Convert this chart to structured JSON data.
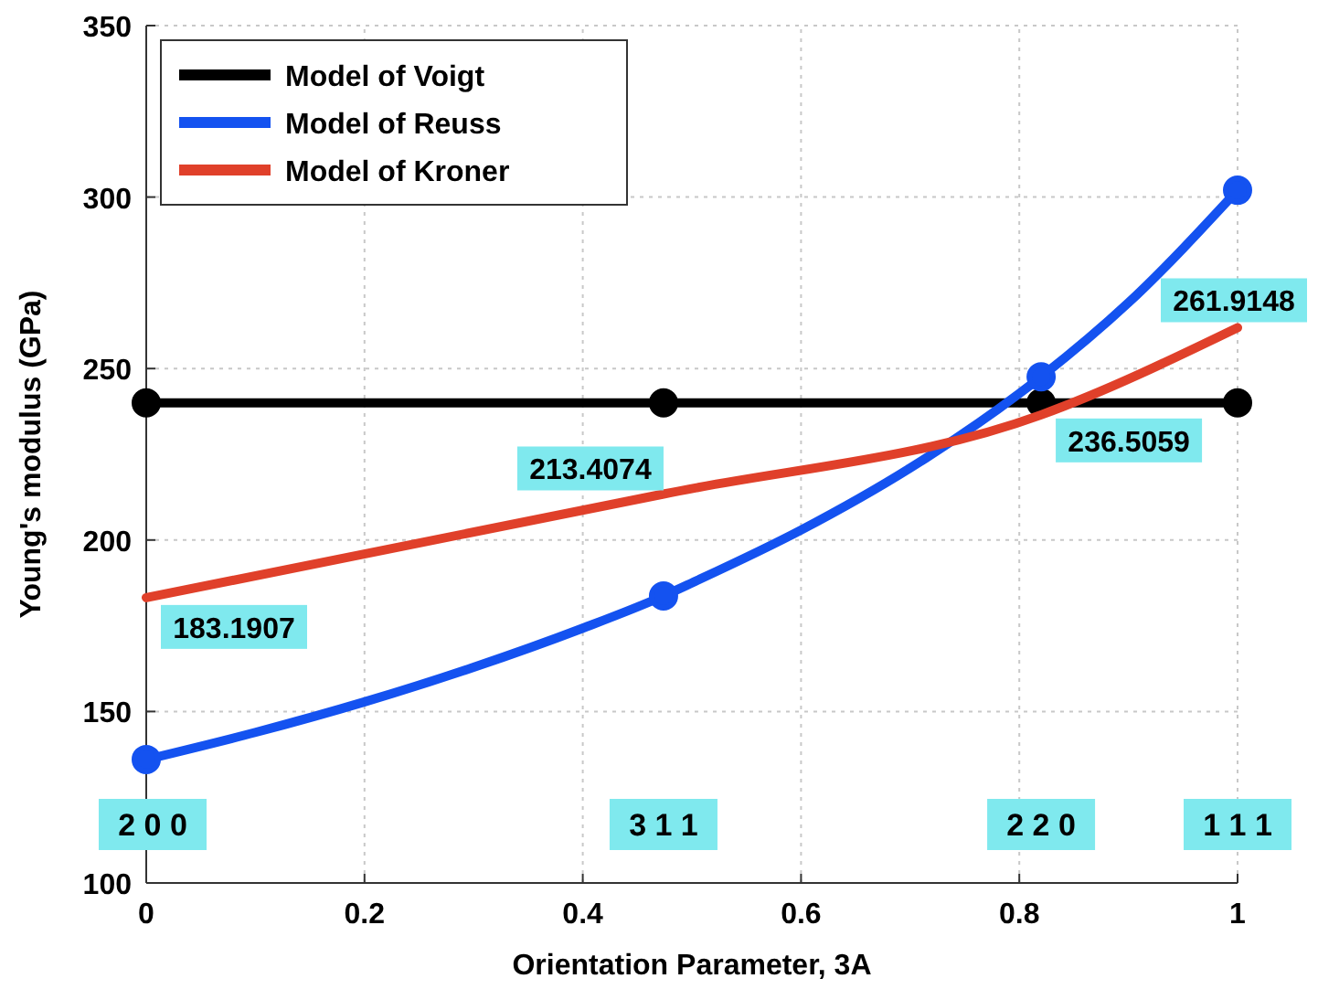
{
  "chart_data": {
    "type": "line",
    "xlabel": "Orientation Parameter, 3A",
    "ylabel": "Young's modulus (GPa)",
    "xlim": [
      0,
      1
    ],
    "ylim": [
      100,
      350
    ],
    "xticks": [
      0,
      0.2,
      0.4,
      0.6,
      0.8,
      1
    ],
    "yticks": [
      100,
      150,
      200,
      250,
      300,
      350
    ],
    "grid": true,
    "legend": "top left",
    "line_style": "solid",
    "series": [
      {
        "name": "Model of Voigt",
        "color": "#000000",
        "marker": "circle",
        "x": [
          0,
          0.474,
          0.82,
          1
        ],
        "values": [
          240,
          240,
          240,
          240
        ]
      },
      {
        "name": "Model of Reuss",
        "color": "#1452f0",
        "marker": "none",
        "x": [
          0,
          0.1,
          0.2,
          0.3,
          0.4,
          0.474,
          0.5,
          0.6,
          0.7,
          0.8,
          0.82,
          0.9,
          1
        ],
        "values": [
          136,
          143.9,
          152.8,
          162.9,
          174.3,
          183.7,
          187.5,
          202.9,
          221,
          242.7,
          247.6,
          269.2,
          302
        ]
      },
      {
        "type": "scatter",
        "color": "#1452f0",
        "marker": "circle",
        "x": [
          0,
          0.474,
          0.82,
          1
        ],
        "values": [
          136,
          183.7,
          247.6,
          302
        ]
      },
      {
        "name": "Model of Kroner",
        "color": "#e0402a",
        "marker": "none",
        "x": [
          0,
          0.474,
          0.82,
          1
        ],
        "values": [
          183.1907,
          213.4074,
          236.5059,
          261.9148
        ],
        "value_labels": [
          "183.1907",
          "213.4074",
          "236.5059",
          "261.9148"
        ]
      }
    ],
    "annotations": [
      "2 0 0",
      "3 1 1",
      "2 2 0",
      "1 1 1"
    ]
  }
}
